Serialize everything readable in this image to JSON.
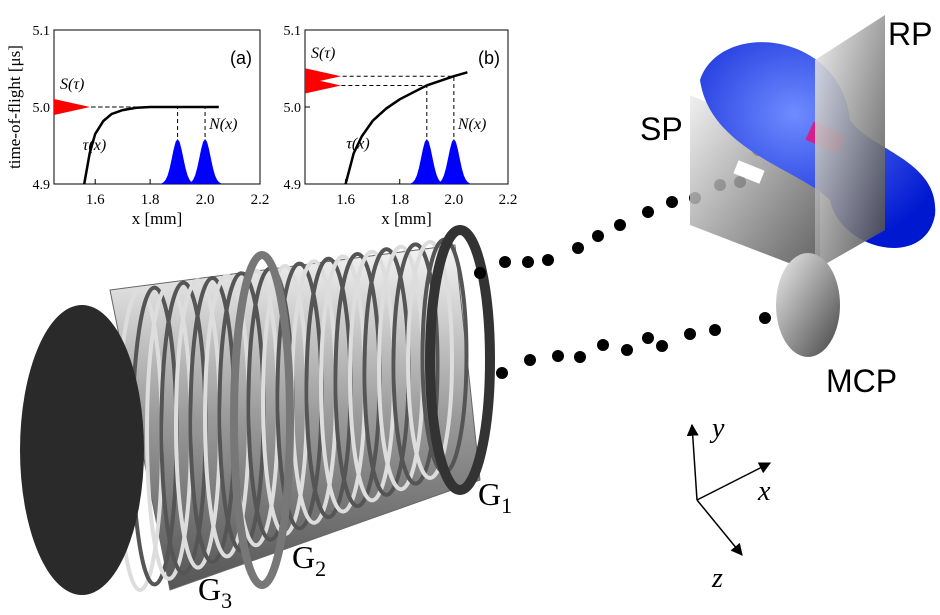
{
  "chart_data": [
    {
      "type": "line",
      "panel_label": "(a)",
      "y_label": "time-of-flight [μs]",
      "x_label": "x [mm]",
      "xlim": [
        1.45,
        2.2
      ],
      "xticks": [
        1.6,
        1.8,
        {
          "value": 2,
          "label": "2.0"
        },
        2.2
      ],
      "ylim": [
        4.9,
        5.1
      ],
      "yticks": [
        4.9,
        {
          "value": 5,
          "label": "5.0"
        },
        5.1
      ],
      "series": [
        {
          "name": "τ(x)",
          "color": "#000000",
          "x": [
            1.56,
            1.58,
            1.6,
            1.63,
            1.66,
            1.7,
            1.75,
            1.8,
            1.9,
            2.0,
            2.05
          ],
          "values": [
            4.9,
            4.94,
            4.965,
            4.982,
            4.991,
            4.996,
            4.999,
            5.0,
            5.0,
            5.0,
            5.0
          ]
        }
      ],
      "distribution": {
        "name": "N(x)",
        "color": "#0000ff",
        "peaks": [
          1.9,
          2.0
        ]
      },
      "spread": {
        "name": "S(τ)",
        "color": "#ff0000",
        "values": [
          5.0
        ]
      }
    },
    {
      "type": "line",
      "panel_label": "(b)",
      "x_label": "x [mm]",
      "xlim": [
        1.45,
        2.2
      ],
      "xticks": [
        1.6,
        1.8,
        {
          "value": 2,
          "label": "2.0"
        },
        2.2
      ],
      "ylim": [
        4.9,
        5.1
      ],
      "yticks": [
        4.9,
        {
          "value": 5,
          "label": "5.0"
        },
        5.1
      ],
      "series": [
        {
          "name": "τ(x)",
          "color": "#000000",
          "x": [
            1.6,
            1.63,
            1.66,
            1.7,
            1.75,
            1.8,
            1.9,
            2.0,
            2.05
          ],
          "values": [
            4.9,
            4.94,
            4.962,
            4.982,
            4.998,
            5.01,
            5.028,
            5.04,
            5.045
          ]
        }
      ],
      "distribution": {
        "name": "N(x)",
        "color": "#0000ff",
        "peaks": [
          1.9,
          2.0
        ]
      },
      "spread": {
        "name": "S(τ)",
        "color": "#ff0000",
        "values": [
          5.028,
          5.04
        ]
      }
    }
  ],
  "diagram": {
    "rp": "RP",
    "sp": "SP",
    "mcp": "MCP",
    "electrodes": [
      {
        "main": "G",
        "sub": "1"
      },
      {
        "main": "G",
        "sub": "2"
      },
      {
        "main": "G",
        "sub": "3"
      }
    ],
    "axes": [
      "y",
      "x",
      "z"
    ]
  }
}
